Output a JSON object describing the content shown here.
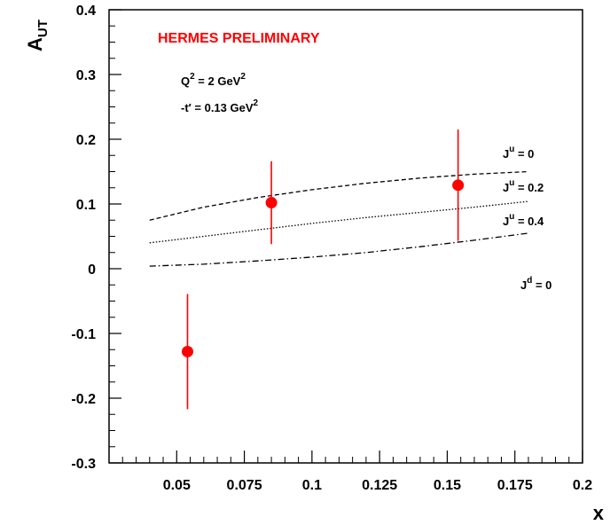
{
  "chart_data": {
    "type": "scatter",
    "xlabel": "x",
    "ylabel": "A",
    "ylabel_sub": "UT",
    "xlim": [
      0.025,
      0.2
    ],
    "ylim": [
      -0.3,
      0.4
    ],
    "x_ticks": [
      0.05,
      0.075,
      0.1,
      0.125,
      0.15,
      0.175,
      0.2
    ],
    "x_tick_labels": [
      "0.05",
      "0.075",
      "0.1",
      "0.125",
      "0.15",
      "0.175",
      "0.2"
    ],
    "y_ticks": [
      -0.3,
      -0.2,
      -0.1,
      0,
      0.1,
      0.2,
      0.3,
      0.4
    ],
    "y_tick_labels": [
      "-0.3",
      "-0.2",
      "-0.1",
      "0",
      "0.1",
      "0.2",
      "0.3",
      "0.4"
    ],
    "grid": false,
    "marker_color": "#ff0000",
    "points": [
      {
        "x": 0.054,
        "y": -0.128,
        "err_low": 0.089,
        "err_high": 0.089
      },
      {
        "x": 0.085,
        "y": 0.102,
        "err_low": 0.064,
        "err_high": 0.064
      },
      {
        "x": 0.154,
        "y": 0.129,
        "err_low": 0.086,
        "err_high": 0.086
      }
    ],
    "curves": [
      {
        "style": "dashed",
        "x": [
          0.04,
          0.06,
          0.08,
          0.1,
          0.12,
          0.14,
          0.16,
          0.18
        ],
        "y": [
          0.075,
          0.095,
          0.11,
          0.122,
          0.132,
          0.14,
          0.146,
          0.15
        ]
      },
      {
        "style": "dotted",
        "x": [
          0.04,
          0.06,
          0.08,
          0.1,
          0.12,
          0.14,
          0.16,
          0.18
        ],
        "y": [
          0.04,
          0.05,
          0.06,
          0.07,
          0.079,
          0.087,
          0.095,
          0.104
        ]
      },
      {
        "style": "dashdot",
        "x": [
          0.04,
          0.06,
          0.08,
          0.1,
          0.12,
          0.14,
          0.16,
          0.18
        ],
        "y": [
          0.004,
          0.007,
          0.012,
          0.018,
          0.025,
          0.034,
          0.044,
          0.055
        ]
      }
    ],
    "curve_labels": [
      {
        "base": "J",
        "sup": "u",
        "rest": " = 0"
      },
      {
        "base": "J",
        "sup": "u",
        "rest": " = 0.2"
      },
      {
        "base": "J",
        "sup": "u",
        "rest": " = 0.4"
      },
      {
        "base": "J",
        "sup": "d",
        "rest": " = 0"
      }
    ],
    "annotations": {
      "title": "HERMES PRELIMINARY",
      "title_color": "#ff0000",
      "q2_label": {
        "base": "Q",
        "sup": "2",
        "rest": " = 2 GeV",
        "sup2": "2"
      },
      "t_label": {
        "base": "-t′  = 0.13  GeV",
        "sup": "2"
      }
    }
  }
}
